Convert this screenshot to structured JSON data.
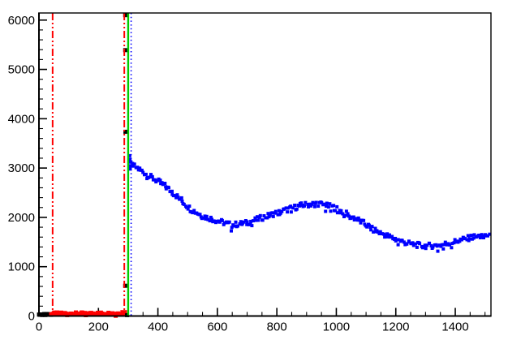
{
  "window": {
    "title": ""
  },
  "chart_data": {
    "type": "scatter",
    "title": "",
    "xlabel": "",
    "ylabel": "",
    "grid": false,
    "legend": "none",
    "background": "#ffffff",
    "frame_color": "#000000",
    "xlim": [
      0,
      1520
    ],
    "ylim": [
      0,
      6144
    ],
    "x_axis": {
      "labels": [
        "0",
        "200",
        "400",
        "600",
        "800",
        "1000",
        "1200",
        "1400"
      ],
      "major_values": [
        0,
        200,
        400,
        600,
        800,
        1000,
        1200,
        1400
      ],
      "minor_step": 50,
      "label_font_px": 15
    },
    "y_axis": {
      "labels": [
        "0",
        "1000",
        "2000",
        "3000",
        "4000",
        "5000",
        "6000"
      ],
      "major_values": [
        0,
        1000,
        2000,
        3000,
        4000,
        5000,
        6000
      ],
      "minor_step": 200,
      "label_font_px": 15
    },
    "vlines": [
      {
        "name": "red-dashdot-line-left",
        "x": 46,
        "color": "#ff0000",
        "width": 2,
        "dash": "9 3 2 3 2 3"
      },
      {
        "name": "red-dashdot-line-right",
        "x": 287,
        "color": "#ff0000",
        "width": 2,
        "dash": "9 3 2 3 2 3"
      },
      {
        "name": "green-solid-line",
        "x": 300,
        "color": "#00cc00",
        "width": 2.4,
        "dash": ""
      },
      {
        "name": "blue-dotted-line",
        "x": 310,
        "color": "#0000ff",
        "width": 1.6,
        "dash": "1.5 3.2"
      }
    ],
    "series": [
      {
        "name": "black-run-low",
        "color": "#000000",
        "marker_px": 5,
        "mode": "band",
        "x_start": 0,
        "x_end": 40,
        "step": 2.5,
        "noise": 12,
        "seed": 3,
        "anchors": [
          [
            0,
            28
          ],
          [
            40,
            28
          ]
        ]
      },
      {
        "name": "red-run-low",
        "color": "#ff0000",
        "marker_px": 5,
        "mode": "band",
        "x_start": 42,
        "x_end": 286,
        "step": 3.5,
        "noise": 24,
        "seed": 7,
        "anchors": [
          [
            42,
            48
          ],
          [
            286,
            52
          ]
        ]
      },
      {
        "name": "red-end-cap",
        "color": "#ff0000",
        "marker_px": 8,
        "mode": "points",
        "points": [
          [
            285,
            55
          ]
        ]
      },
      {
        "name": "black-spikes",
        "color": "#000000",
        "marker_px": 5,
        "mode": "points",
        "points": [
          [
            290,
            6100
          ],
          [
            290,
            5390
          ],
          [
            291,
            3735
          ],
          [
            290,
            613
          ],
          [
            296,
            18
          ]
        ]
      },
      {
        "name": "blue-start-cluster",
        "color": "#0000ff",
        "marker_px": 4,
        "mode": "points",
        "points": [
          [
            305,
            3250
          ],
          [
            307,
            2980
          ],
          [
            309,
            3120
          ],
          [
            304,
            3010
          ],
          [
            306,
            3180
          ]
        ]
      },
      {
        "name": "blue-main",
        "color": "#0000ff",
        "marker_px": 4,
        "mode": "band",
        "x_start": 302,
        "x_end": 1515,
        "step": 4,
        "noise": 55,
        "seed": 11,
        "anchors": [
          [
            300,
            3100
          ],
          [
            320,
            3040
          ],
          [
            350,
            2920
          ],
          [
            390,
            2770
          ],
          [
            430,
            2610
          ],
          [
            470,
            2400
          ],
          [
            510,
            2170
          ],
          [
            550,
            2030
          ],
          [
            600,
            1930
          ],
          [
            650,
            1845
          ],
          [
            700,
            1890
          ],
          [
            770,
            2030
          ],
          [
            825,
            2140
          ],
          [
            880,
            2240
          ],
          [
            935,
            2285
          ],
          [
            990,
            2205
          ],
          [
            1015,
            2130
          ],
          [
            1070,
            1960
          ],
          [
            1125,
            1750
          ],
          [
            1180,
            1600
          ],
          [
            1235,
            1480
          ],
          [
            1290,
            1420
          ],
          [
            1345,
            1430
          ],
          [
            1400,
            1510
          ],
          [
            1455,
            1595
          ],
          [
            1515,
            1645
          ]
        ]
      }
    ]
  }
}
